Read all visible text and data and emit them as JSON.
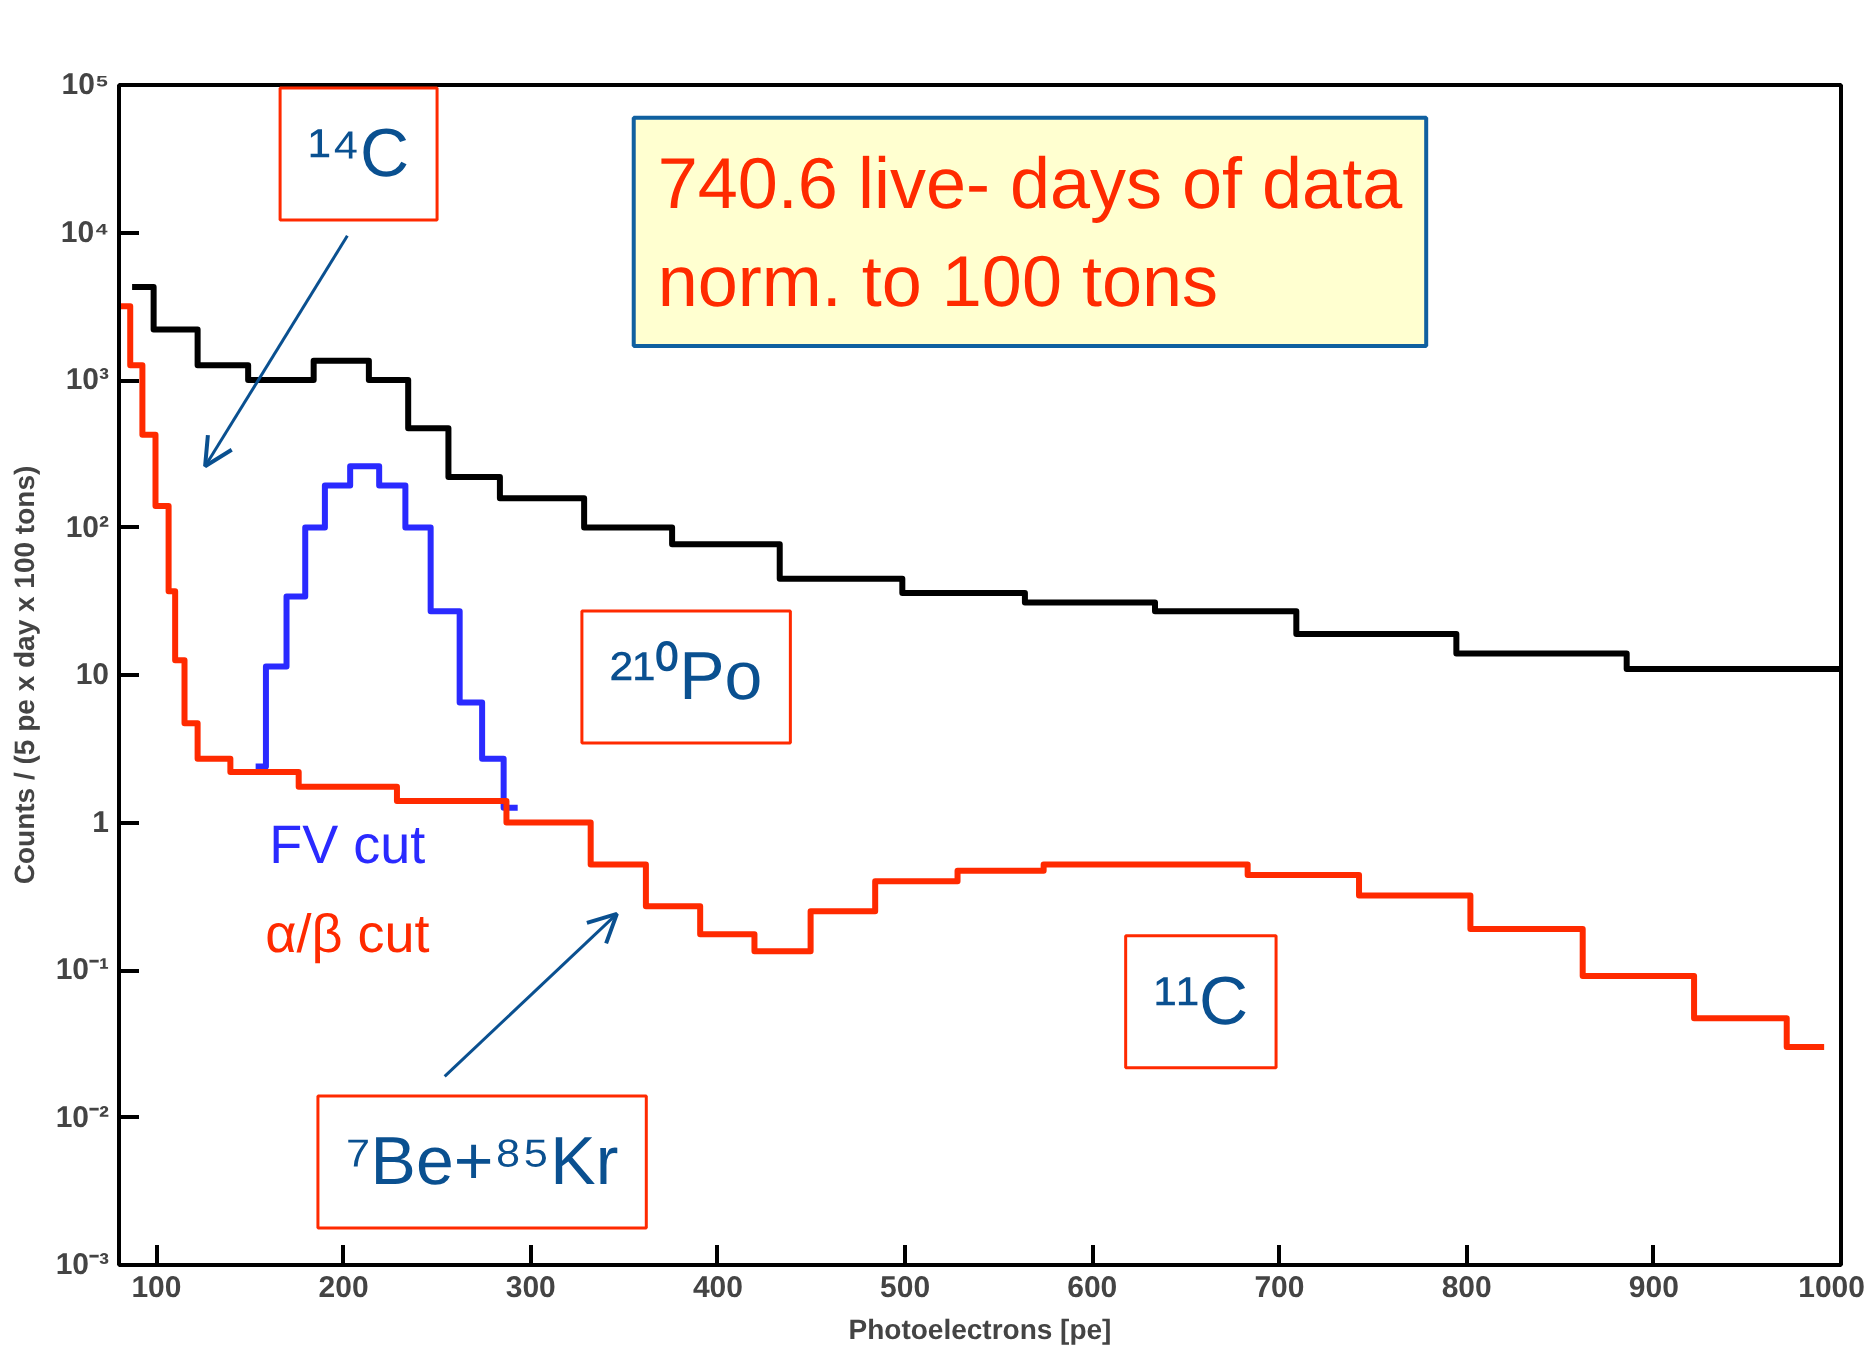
{
  "chart_data": {
    "type": "step",
    "xlabel": "Photoelectrons [pe]",
    "ylabel": "Counts / (5 pe x day x 100 tons)",
    "log": "y",
    "grid": false,
    "legend": false,
    "xlim": [
      80,
      1000
    ],
    "xticks": [
      100,
      200,
      300,
      400,
      500,
      600,
      700,
      800,
      900,
      1000
    ],
    "ylim": [
      0.001,
      100000
    ],
    "yticks": [
      {
        "value": 0.001,
        "label": "10⁻³"
      },
      {
        "value": 0.01,
        "label": "10⁻²"
      },
      {
        "value": 0.1,
        "label": "10⁻¹"
      },
      1,
      10,
      {
        "value": 100,
        "label": "10²"
      },
      {
        "value": 1000,
        "label": "10³"
      },
      {
        "value": 10000,
        "label": "10⁴"
      },
      {
        "value": 100000,
        "label": "10⁵"
      }
    ],
    "series": [
      {
        "color": "#000000",
        "x": [
          87,
          110,
          134,
          164,
          204,
          223,
          246,
          266,
          301,
          356,
          395,
          471,
          526,
          602,
          665,
          753,
          836,
          935,
          1000
        ],
        "values": [
          4270,
          2200,
          1260,
          1000,
          1350,
          1000,
          470,
          220,
          158,
          100,
          77,
          45,
          36,
          31,
          27,
          19,
          14,
          11,
          11
        ]
      },
      {
        "name": "FV cut",
        "color": "#2a2aff",
        "x": [
          153,
          164,
          175,
          184,
          196,
          211,
          227,
          239,
          254,
          270,
          278,
          293
        ],
        "values": [
          2.4,
          11.4,
          34,
          100,
          193,
          260,
          193,
          100,
          27,
          6.5,
          2.7,
          1.26
        ]
      },
      {
        "name": "α/β cut",
        "color": "#ff2a00",
        "x": [
          81,
          91,
          94,
          105,
          108,
          112,
          118,
          126,
          153,
          199,
          258,
          316,
          348,
          375,
          406,
          433,
          466,
          502,
          554,
          594,
          653,
          713,
          772,
          832,
          892,
          951,
          991
        ],
        "values": [
          3160,
          1260,
          425,
          140,
          37,
          12.6,
          4.7,
          2.7,
          2.2,
          1.75,
          1.4,
          1.0,
          0.52,
          0.27,
          0.175,
          0.134,
          0.25,
          0.4,
          0.47,
          0.52,
          0.52,
          0.44,
          0.32,
          0.19,
          0.091,
          0.047,
          0.03
        ]
      }
    ],
    "annotations": [
      "¹⁴C",
      "740.6 live- days of data\nnorm. to 100 tons",
      "²¹⁰Po",
      "¹¹C",
      "⁷Be+⁸⁵Kr"
    ]
  }
}
